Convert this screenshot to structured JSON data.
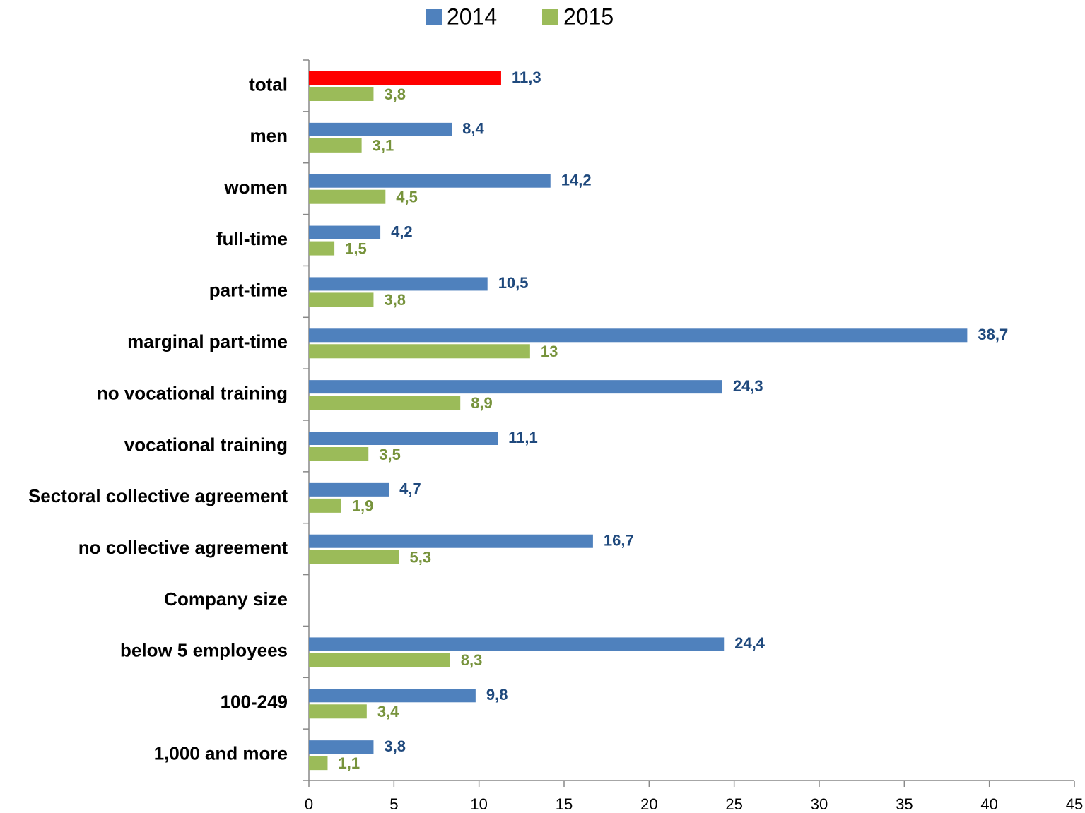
{
  "chart_data": {
    "type": "hbar",
    "categories": [
      "total",
      "men",
      "women",
      "full-time",
      "part-time",
      "marginal part-time",
      "no vocational training",
      "vocational training",
      "Sectoral collective agreement",
      "no collective agreement",
      "Company size",
      "below 5 employees",
      "100-249",
      "1,000 and more"
    ],
    "series": [
      {
        "name": "2014",
        "color": "#4f81bd",
        "label_color": "#1f497d",
        "colors": [
          "#ff0000",
          "#4f81bd",
          "#4f81bd",
          "#4f81bd",
          "#4f81bd",
          "#4f81bd",
          "#4f81bd",
          "#4f81bd",
          "#4f81bd",
          "#4f81bd",
          "#4f81bd",
          "#4f81bd",
          "#4f81bd",
          "#4f81bd"
        ],
        "values": [
          11.3,
          8.4,
          14.2,
          4.2,
          10.5,
          38.7,
          24.3,
          11.1,
          4.7,
          16.7,
          null,
          24.4,
          9.8,
          3.8
        ],
        "value_labels": [
          "11,3",
          "8,4",
          "14,2",
          "4,2",
          "10,5",
          "38,7",
          "24,3",
          "11,1",
          "4,7",
          "16,7",
          null,
          "24,4",
          "9,8",
          "3,8"
        ]
      },
      {
        "name": "2015",
        "color": "#9bbb59",
        "label_color": "#77933c",
        "values": [
          3.8,
          3.1,
          4.5,
          1.5,
          3.8,
          13,
          8.9,
          3.5,
          1.9,
          5.3,
          null,
          8.3,
          3.4,
          1.1
        ],
        "value_labels": [
          "3,8",
          "3,1",
          "4,5",
          "1,5",
          "3,8",
          "13",
          "8,9",
          "3,5",
          "1,9",
          "5,3",
          null,
          "8,3",
          "3,4",
          "1,1"
        ]
      }
    ],
    "xlim": [
      0,
      45
    ],
    "xticks": [
      0,
      5,
      10,
      15,
      20,
      25,
      30,
      35,
      40,
      45
    ],
    "legend": "top"
  }
}
